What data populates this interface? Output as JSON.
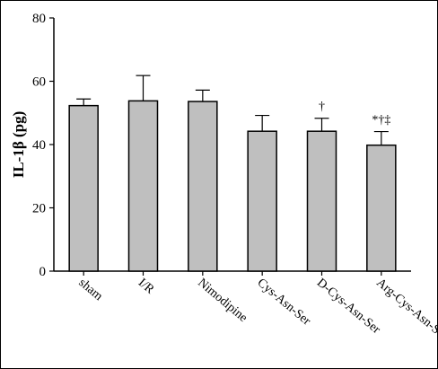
{
  "chart_data": {
    "type": "bar",
    "title": "",
    "xlabel": "",
    "ylabel": "IL-1β (pg)",
    "categories": [
      "sham",
      "I/R",
      "Nimodipine",
      "Cys-Asn-Ser",
      "D-Cys-Asn-Ser",
      "Arg-Cys-Asn-Ser"
    ],
    "values": [
      52.3,
      53.8,
      53.6,
      44.2,
      44.2,
      39.8
    ],
    "error_plus": [
      2.1,
      8.0,
      3.6,
      5.0,
      4.1,
      4.3
    ],
    "annotations": [
      "",
      "",
      "",
      "",
      "†",
      "*†‡"
    ],
    "ylim": [
      0,
      80
    ],
    "yticks": [
      0,
      20,
      40,
      60,
      80
    ],
    "grid": false,
    "bar_color": "#bfbfbf",
    "edge_color": "#000000"
  }
}
